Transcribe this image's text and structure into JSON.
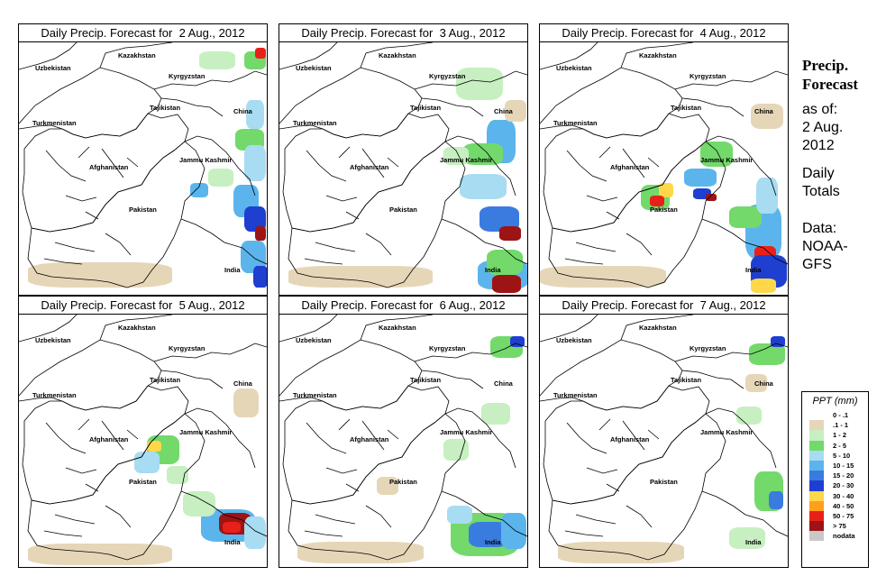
{
  "panels": [
    {
      "title": "Daily Precip. Forecast for  2 Aug., 2012"
    },
    {
      "title": "Daily Precip. Forecast for  3 Aug., 2012"
    },
    {
      "title": "Daily Precip. Forecast for  4 Aug., 2012"
    },
    {
      "title": "Daily Precip. Forecast for  5 Aug., 2012"
    },
    {
      "title": "Daily Precip. Forecast for  6 Aug., 2012"
    },
    {
      "title": "Daily Precip. Forecast for  7 Aug., 2012"
    }
  ],
  "map_labels": {
    "kazakhstan": "Kazakhstan",
    "uzbekistan": "Uzbekistan",
    "kyrgyzstan": "Kyrgyzstan",
    "tajikistan": "Tajikistan",
    "turkmenistan": "Turkmenistan",
    "china": "China",
    "afghanistan": "Afghanistan",
    "jammu_kashmir": "Jammu Kashmir",
    "pakistan": "Pakistan",
    "india": "India"
  },
  "sidebar": {
    "title_line1": "Precip.",
    "title_line2": "Forecast",
    "asof_line1": "as of:",
    "asof_line2": "2 Aug.",
    "asof_line3": "2012",
    "totals_line1": "Daily",
    "totals_line2": "Totals",
    "data_line1": "Data:",
    "data_line2": "NOAA-",
    "data_line3": "GFS"
  },
  "legend": {
    "title": "PPT (mm)",
    "items": [
      {
        "label": "0 - .1",
        "color": "#ffffff"
      },
      {
        "label": ".1 - 1",
        "color": "#e6d6b8"
      },
      {
        "label": "1 - 2",
        "color": "#c7efc1"
      },
      {
        "label": "2 - 5",
        "color": "#73d96b"
      },
      {
        "label": "5 - 10",
        "color": "#a8dcf2"
      },
      {
        "label": "10 - 15",
        "color": "#5bb5ec"
      },
      {
        "label": "15 - 20",
        "color": "#3a7be0"
      },
      {
        "label": "20 - 30",
        "color": "#1f3fd1"
      },
      {
        "label": "30 - 40",
        "color": "#ffd84a"
      },
      {
        "label": "40 - 50",
        "color": "#ff9f1c"
      },
      {
        "label": "50 - 75",
        "color": "#e8201a"
      },
      {
        "label": "> 75",
        "color": "#9c1414"
      },
      {
        "label": "nodata",
        "color": "#c8c8c8"
      }
    ]
  }
}
